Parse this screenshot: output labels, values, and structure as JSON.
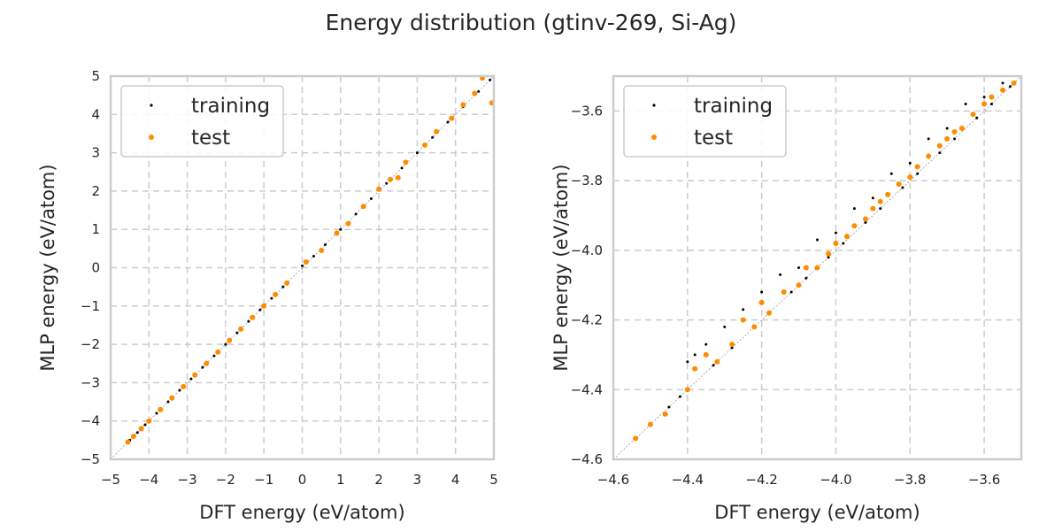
{
  "figure": {
    "title": "Energy distribution (gtinv-269, Si-Ag)"
  },
  "colors": {
    "training": "#000000",
    "test": "#ff8c00",
    "grid": "#cccccc",
    "frame": "#cccccc",
    "diagonal": "#999999"
  },
  "chart_data": [
    {
      "type": "scatter",
      "xlabel": "DFT energy (eV/atom)",
      "ylabel": "MLP energy (eV/atom)",
      "xlim": [
        -5,
        5
      ],
      "ylim": [
        -5,
        5
      ],
      "xticks": [
        -5,
        -4,
        -3,
        -2,
        -1,
        0,
        1,
        2,
        3,
        4,
        5
      ],
      "yticks": [
        -5,
        -4,
        -3,
        -2,
        -1,
        0,
        1,
        2,
        3,
        4,
        5
      ],
      "tick_labels_x": [
        "−5",
        "−4",
        "−3",
        "−2",
        "−1",
        "0",
        "1",
        "2",
        "3",
        "4",
        "5"
      ],
      "tick_labels_y": [
        "−5",
        "−4",
        "−3",
        "−2",
        "−1",
        "0",
        "1",
        "2",
        "3",
        "4",
        "5"
      ],
      "grid": true,
      "legend_position": "top-left",
      "series": [
        {
          "name": "training",
          "points": [
            [
              -4.5,
              -4.5
            ],
            [
              -4.3,
              -4.3
            ],
            [
              -4.1,
              -4.1
            ],
            [
              -3.8,
              -3.8
            ],
            [
              -3.5,
              -3.5
            ],
            [
              -3.2,
              -3.2
            ],
            [
              -2.9,
              -2.9
            ],
            [
              -2.6,
              -2.6
            ],
            [
              -2.3,
              -2.3
            ],
            [
              -2.0,
              -2.0
            ],
            [
              -1.7,
              -1.7
            ],
            [
              -1.4,
              -1.4
            ],
            [
              -1.1,
              -1.1
            ],
            [
              -0.8,
              -0.8
            ],
            [
              -0.5,
              -0.5
            ],
            [
              0.0,
              0.05
            ],
            [
              0.3,
              0.3
            ],
            [
              0.6,
              0.6
            ],
            [
              1.0,
              1.0
            ],
            [
              1.4,
              1.4
            ],
            [
              1.8,
              1.8
            ],
            [
              2.2,
              2.2
            ],
            [
              2.6,
              2.6
            ],
            [
              3.0,
              3.0
            ],
            [
              3.4,
              3.4
            ],
            [
              3.8,
              3.8
            ],
            [
              4.2,
              4.2
            ],
            [
              4.6,
              4.6
            ],
            [
              4.9,
              4.9
            ]
          ]
        },
        {
          "name": "test",
          "points": [
            [
              -4.55,
              -4.55
            ],
            [
              -4.4,
              -4.4
            ],
            [
              -4.2,
              -4.2
            ],
            [
              -4.0,
              -4.0
            ],
            [
              -3.7,
              -3.7
            ],
            [
              -3.4,
              -3.4
            ],
            [
              -3.1,
              -3.1
            ],
            [
              -2.8,
              -2.8
            ],
            [
              -2.5,
              -2.5
            ],
            [
              -2.2,
              -2.2
            ],
            [
              -1.9,
              -1.9
            ],
            [
              -1.6,
              -1.6
            ],
            [
              -1.3,
              -1.3
            ],
            [
              -1.0,
              -1.0
            ],
            [
              -0.7,
              -0.7
            ],
            [
              -0.4,
              -0.4
            ],
            [
              0.1,
              0.15
            ],
            [
              0.5,
              0.45
            ],
            [
              0.9,
              0.9
            ],
            [
              1.2,
              1.15
            ],
            [
              1.6,
              1.6
            ],
            [
              2.0,
              2.05
            ],
            [
              2.3,
              2.3
            ],
            [
              2.5,
              2.35
            ],
            [
              2.7,
              2.75
            ],
            [
              3.2,
              3.2
            ],
            [
              3.5,
              3.55
            ],
            [
              3.9,
              3.9
            ],
            [
              4.2,
              4.25
            ],
            [
              4.5,
              4.55
            ],
            [
              4.7,
              4.95
            ],
            [
              4.95,
              4.3
            ]
          ]
        }
      ]
    },
    {
      "type": "scatter",
      "xlabel": "DFT energy (eV/atom)",
      "ylabel": "MLP energy (eV/atom)",
      "xlim": [
        -4.6,
        -3.5
      ],
      "ylim": [
        -4.6,
        -3.5
      ],
      "xticks": [
        -4.6,
        -4.4,
        -4.2,
        -4.0,
        -3.8,
        -3.6
      ],
      "yticks": [
        -4.6,
        -4.4,
        -4.2,
        -4.0,
        -3.8,
        -3.6
      ],
      "tick_labels_x": [
        "−4.6",
        "−4.4",
        "−4.2",
        "−4.0",
        "−3.8",
        "−3.6"
      ],
      "tick_labels_y": [
        "−4.6",
        "−4.4",
        "−4.2",
        "−4.0",
        "−3.8",
        "−3.6"
      ],
      "grid": true,
      "legend_position": "top-left",
      "series": [
        {
          "name": "training",
          "points": [
            [
              -4.54,
              -4.54
            ],
            [
              -4.5,
              -4.5
            ],
            [
              -4.45,
              -4.45
            ],
            [
              -4.42,
              -4.42
            ],
            [
              -4.4,
              -4.32
            ],
            [
              -4.38,
              -4.3
            ],
            [
              -4.35,
              -4.27
            ],
            [
              -4.33,
              -4.33
            ],
            [
              -4.3,
              -4.22
            ],
            [
              -4.28,
              -4.28
            ],
            [
              -4.25,
              -4.17
            ],
            [
              -4.22,
              -4.22
            ],
            [
              -4.2,
              -4.12
            ],
            [
              -4.18,
              -4.18
            ],
            [
              -4.15,
              -4.07
            ],
            [
              -4.12,
              -4.12
            ],
            [
              -4.1,
              -4.05
            ],
            [
              -4.08,
              -4.08
            ],
            [
              -4.05,
              -3.97
            ],
            [
              -4.02,
              -4.02
            ],
            [
              -4.0,
              -3.95
            ],
            [
              -3.98,
              -3.98
            ],
            [
              -3.95,
              -3.88
            ],
            [
              -3.92,
              -3.92
            ],
            [
              -3.9,
              -3.85
            ],
            [
              -3.88,
              -3.88
            ],
            [
              -3.85,
              -3.78
            ],
            [
              -3.82,
              -3.82
            ],
            [
              -3.8,
              -3.75
            ],
            [
              -3.78,
              -3.78
            ],
            [
              -3.75,
              -3.68
            ],
            [
              -3.72,
              -3.72
            ],
            [
              -3.7,
              -3.65
            ],
            [
              -3.68,
              -3.68
            ],
            [
              -3.65,
              -3.58
            ],
            [
              -3.62,
              -3.62
            ],
            [
              -3.6,
              -3.56
            ],
            [
              -3.58,
              -3.58
            ],
            [
              -3.55,
              -3.52
            ],
            [
              -3.53,
              -3.53
            ]
          ]
        },
        {
          "name": "test",
          "points": [
            [
              -4.54,
              -4.54
            ],
            [
              -4.5,
              -4.5
            ],
            [
              -4.46,
              -4.47
            ],
            [
              -4.4,
              -4.4
            ],
            [
              -4.38,
              -4.34
            ],
            [
              -4.35,
              -4.3
            ],
            [
              -4.32,
              -4.32
            ],
            [
              -4.28,
              -4.27
            ],
            [
              -4.25,
              -4.2
            ],
            [
              -4.22,
              -4.22
            ],
            [
              -4.2,
              -4.15
            ],
            [
              -4.18,
              -4.18
            ],
            [
              -4.14,
              -4.12
            ],
            [
              -4.1,
              -4.1
            ],
            [
              -4.08,
              -4.05
            ],
            [
              -4.05,
              -4.05
            ],
            [
              -4.02,
              -4.01
            ],
            [
              -4.0,
              -3.98
            ],
            [
              -3.97,
              -3.96
            ],
            [
              -3.95,
              -3.93
            ],
            [
              -3.92,
              -3.91
            ],
            [
              -3.9,
              -3.88
            ],
            [
              -3.88,
              -3.86
            ],
            [
              -3.86,
              -3.84
            ],
            [
              -3.83,
              -3.81
            ],
            [
              -3.8,
              -3.79
            ],
            [
              -3.78,
              -3.76
            ],
            [
              -3.75,
              -3.73
            ],
            [
              -3.72,
              -3.7
            ],
            [
              -3.7,
              -3.68
            ],
            [
              -3.68,
              -3.66
            ],
            [
              -3.66,
              -3.65
            ],
            [
              -3.63,
              -3.61
            ],
            [
              -3.6,
              -3.58
            ],
            [
              -3.58,
              -3.56
            ],
            [
              -3.55,
              -3.54
            ],
            [
              -3.52,
              -3.52
            ]
          ]
        }
      ]
    }
  ]
}
